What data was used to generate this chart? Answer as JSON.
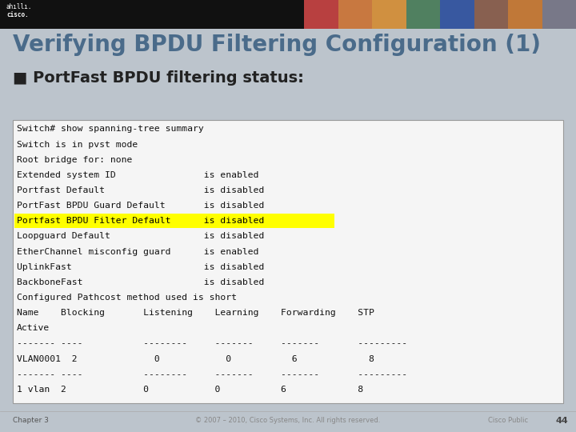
{
  "title": "Verifying BPDU Filtering Configuration (1)",
  "bullet": "■ PortFast BPDU filtering status:",
  "bg_color": "#bcc4cc",
  "header_bg": "#111111",
  "title_color": "#4a6b8a",
  "title_fontsize": 20,
  "bullet_fontsize": 14,
  "code_fontsize": 8.2,
  "footer_left": "Chapter 3",
  "footer_center": "© 2007 – 2010, Cisco Systems, Inc. All rights reserved.",
  "footer_right": "Cisco Public",
  "page_number": "44",
  "code_lines": [
    "Switch# show spanning-tree summary",
    "Switch is in pvst mode",
    "Root bridge for: none",
    "Extended system ID                is enabled",
    "Portfast Default                  is disabled",
    "PortFast BPDU Guard Default       is disabled",
    "Portfast BPDU Filter Default      is disabled",
    "Loopguard Default                 is disabled",
    "EtherChannel misconfig guard      is enabled",
    "UplinkFast                        is disabled",
    "BackboneFast                      is disabled",
    "Configured Pathcost method used is short",
    "Name    Blocking       Listening    Learning    Forwarding    STP",
    "Active",
    "------- ----           --------     -------     -------       ---------",
    "VLAN0001  2              0            0           6             8",
    "------- ----           --------     -------     -------       ---------",
    "1 vlan  2              0            0           6             8"
  ],
  "highlight_line_idx": 6,
  "highlight_color": "#ffff00",
  "code_box_facecolor": "#f5f5f5",
  "code_box_edgecolor": "#999999",
  "photo_colors": [
    "#b84040",
    "#c87840",
    "#d09040",
    "#508060",
    "#3858a0",
    "#886050",
    "#c07838",
    "#787888"
  ]
}
